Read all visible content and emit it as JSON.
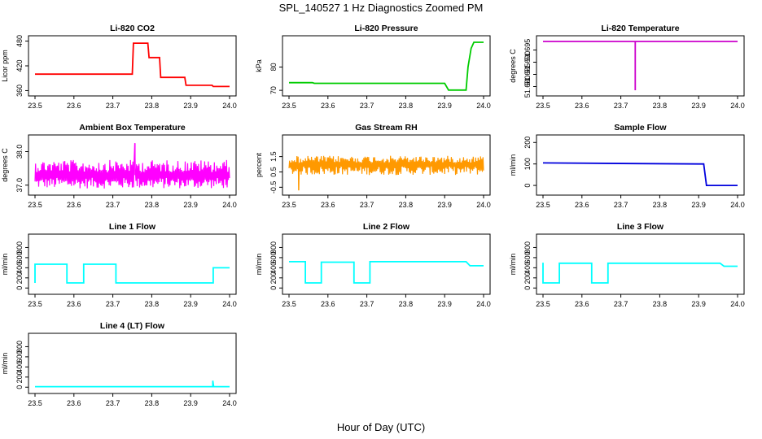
{
  "page": {
    "title": "SPL_140527  1 Hz Diagnostics Zoomed PM",
    "xlabel": "Hour of Day (UTC)"
  },
  "chart_data": [
    {
      "type": "line",
      "title": "Li-820 CO2",
      "ylabel": "Licor ppm",
      "color": "#ff0000",
      "xlim": [
        23.5,
        24.0
      ],
      "ylim": [
        355,
        485
      ],
      "xticks": [
        "23.5",
        "23.6",
        "23.7",
        "23.8",
        "23.9",
        "24.0"
      ],
      "yticks": [
        360,
        420,
        480
      ],
      "x": [
        23.5,
        23.75,
        23.753,
        23.79,
        23.793,
        23.82,
        23.823,
        23.885,
        23.888,
        23.955,
        23.958,
        24.0
      ],
      "y": [
        400,
        400,
        475,
        475,
        440,
        440,
        392,
        392,
        373,
        373,
        370,
        370
      ]
    },
    {
      "type": "line",
      "title": "Li-820 Pressure",
      "ylabel": "kPa",
      "color": "#00cc00",
      "xlim": [
        23.5,
        24.0
      ],
      "ylim": [
        69,
        92
      ],
      "xticks": [
        "23.5",
        "23.6",
        "23.7",
        "23.8",
        "23.9",
        "24.0"
      ],
      "yticks": [
        70,
        80
      ],
      "x": [
        23.5,
        23.56,
        23.565,
        23.9,
        23.91,
        23.955,
        23.96,
        23.968,
        23.975,
        24.0
      ],
      "y": [
        73.3,
        73.3,
        73.0,
        73.0,
        70.1,
        70.1,
        80,
        88,
        90.6,
        90.6
      ]
    },
    {
      "type": "line",
      "title": "Li-820 Temperature",
      "ylabel": "degrees C",
      "color": "#cc00cc",
      "xlim": [
        23.5,
        24.0
      ],
      "ylim": [
        51.6775,
        51.6995
      ],
      "xticks": [
        "23.5",
        "23.6",
        "23.7",
        "23.8",
        "23.9",
        "24.0"
      ],
      "yticks": [
        "51.680",
        "51.685",
        "51.690",
        "51.695"
      ],
      "x": [
        23.5,
        23.737,
        23.737,
        23.737,
        24.0
      ],
      "y": [
        51.6985,
        51.6985,
        51.6785,
        51.6985,
        51.6985
      ]
    },
    {
      "type": "line",
      "title": "Ambient Box Temperature",
      "ylabel": "degrees C",
      "color": "#ff00ff",
      "xlim": [
        23.5,
        24.0
      ],
      "ylim": [
        36.8,
        38.4
      ],
      "xticks": [
        "23.5",
        "23.6",
        "23.7",
        "23.8",
        "23.9",
        "24.0"
      ],
      "yticks": [
        "37.0",
        "38.0"
      ],
      "band": {
        "low": 36.9,
        "high": 37.75,
        "mean": 37.3,
        "spike_x": 23.757,
        "spike_y": 38.25
      }
    },
    {
      "type": "line",
      "title": "Gas Stream RH",
      "ylabel": "percent",
      "color": "#ff9900",
      "xlim": [
        23.5,
        24.0
      ],
      "ylim": [
        -0.8,
        2.7
      ],
      "xticks": [
        "23.5",
        "23.6",
        "23.7",
        "23.8",
        "23.9",
        "24.0"
      ],
      "yticks": [
        "-0.5",
        "0.5",
        "1.5"
      ],
      "band": {
        "low": 0.3,
        "high": 1.55,
        "mean": 1.0,
        "spike_x": 23.525,
        "spike_y": -0.7
      }
    },
    {
      "type": "line",
      "title": "Sample Flow",
      "ylabel": "ml/min",
      "color": "#0000dd",
      "xlim": [
        23.5,
        24.0
      ],
      "ylim": [
        -30,
        220
      ],
      "xticks": [
        "23.5",
        "23.6",
        "23.7",
        "23.8",
        "23.9",
        "24.0"
      ],
      "yticks": [
        0,
        100,
        200
      ],
      "x": [
        23.5,
        23.9,
        23.913,
        23.92,
        24.0
      ],
      "y": [
        105,
        100,
        100,
        0,
        0
      ]
    },
    {
      "type": "line",
      "title": "Line 1 Flow",
      "ylabel": "ml/min",
      "color": "#00ffff",
      "xlim": [
        23.5,
        24.0
      ],
      "ylim": [
        -60,
        1000
      ],
      "xticks": [
        "23.5",
        "23.6",
        "23.7",
        "23.8",
        "23.9",
        "24.0"
      ],
      "yticks": [
        0,
        200,
        400,
        600,
        800
      ],
      "x": [
        23.5,
        23.5,
        23.582,
        23.582,
        23.625,
        23.625,
        23.708,
        23.708,
        23.958,
        23.958,
        24.0
      ],
      "y": [
        100,
        470,
        470,
        100,
        100,
        470,
        470,
        100,
        100,
        400,
        400
      ]
    },
    {
      "type": "line",
      "title": "Line 2 Flow",
      "ylabel": "ml/min",
      "color": "#00ffff",
      "xlim": [
        23.5,
        24.0
      ],
      "ylim": [
        -60,
        1000
      ],
      "xticks": [
        "23.5",
        "23.6",
        "23.7",
        "23.8",
        "23.9",
        "24.0"
      ],
      "yticks": [
        0,
        200,
        400,
        600,
        800
      ],
      "x": [
        23.5,
        23.542,
        23.542,
        23.583,
        23.583,
        23.667,
        23.667,
        23.708,
        23.708,
        23.955,
        23.965,
        24.0
      ],
      "y": [
        520,
        520,
        100,
        100,
        510,
        510,
        100,
        100,
        520,
        520,
        440,
        440
      ]
    },
    {
      "type": "line",
      "title": "Line 3 Flow",
      "ylabel": "ml/min",
      "color": "#00ffff",
      "xlim": [
        23.5,
        24.0
      ],
      "ylim": [
        -60,
        1000
      ],
      "xticks": [
        "23.5",
        "23.6",
        "23.7",
        "23.8",
        "23.9",
        "24.0"
      ],
      "yticks": [
        0,
        200,
        400,
        600,
        800
      ],
      "x": [
        23.5,
        23.5,
        23.542,
        23.542,
        23.625,
        23.625,
        23.667,
        23.667,
        23.955,
        23.965,
        24.0
      ],
      "y": [
        500,
        100,
        100,
        490,
        490,
        100,
        100,
        490,
        490,
        430,
        430
      ]
    },
    {
      "type": "line",
      "title": "Line 4 (LT) Flow",
      "ylabel": "ml/min",
      "color": "#00ffff",
      "xlim": [
        23.5,
        24.0
      ],
      "ylim": [
        -60,
        1000
      ],
      "xticks": [
        "23.5",
        "23.6",
        "23.7",
        "23.8",
        "23.9",
        "24.0"
      ],
      "yticks": [
        0,
        200,
        400,
        600,
        800
      ],
      "x": [
        23.5,
        23.957,
        23.957,
        23.959,
        23.96,
        24.0
      ],
      "y": [
        10,
        10,
        130,
        10,
        10,
        10
      ]
    }
  ]
}
